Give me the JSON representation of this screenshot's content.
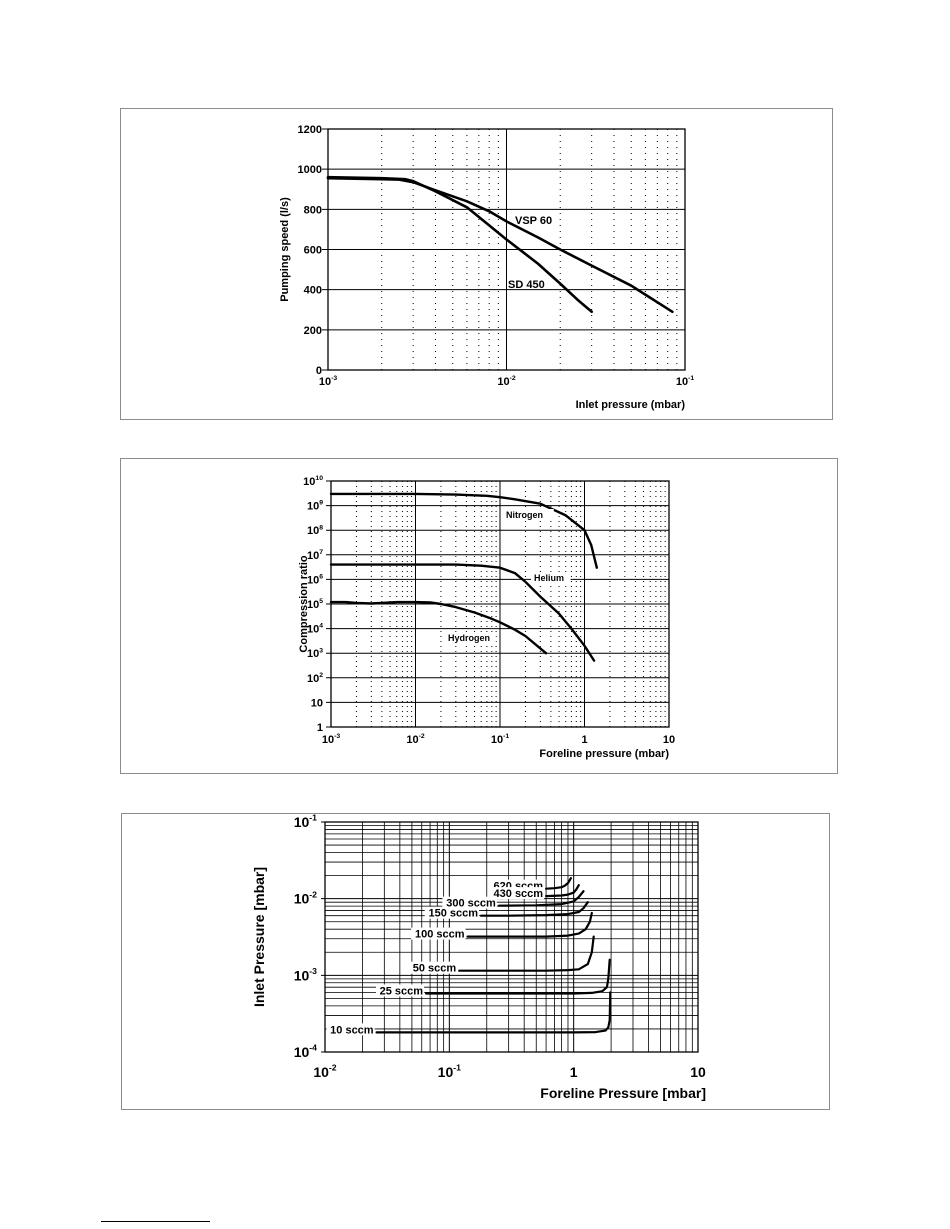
{
  "chart_data": [
    {
      "type": "line",
      "xscale": "log",
      "xlim": [
        0.001,
        0.1
      ],
      "ylim": [
        0,
        1200
      ],
      "xlabel": "Inlet pressure (mbar)",
      "ylabel": "Pumping speed (l/s)",
      "title": "",
      "grid": true,
      "x_tick_labels": [
        {
          "x": 0.001,
          "base": "10",
          "exp": "-3"
        },
        {
          "x": 0.01,
          "base": "10",
          "exp": "-2"
        },
        {
          "x": 0.1,
          "base": "10",
          "exp": "-1"
        }
      ],
      "y_ticks": [
        0,
        200,
        400,
        600,
        800,
        1000,
        1200
      ],
      "y_tick_labels": [
        "0",
        "200",
        "400",
        "600",
        "800",
        "1000",
        "1200"
      ],
      "series": [
        {
          "name": "VSP 60",
          "x": [
            0.001,
            0.002,
            0.0025,
            0.003,
            0.004,
            0.006,
            0.008,
            0.01,
            0.015,
            0.02,
            0.03,
            0.05,
            0.085
          ],
          "y": [
            955,
            950,
            948,
            935,
            895,
            840,
            790,
            740,
            660,
            600,
            520,
            420,
            290
          ]
        },
        {
          "name": "SD 450",
          "x": [
            0.001,
            0.002,
            0.0027,
            0.003,
            0.004,
            0.006,
            0.008,
            0.01,
            0.015,
            0.02,
            0.025,
            0.03
          ],
          "y": [
            960,
            955,
            950,
            940,
            890,
            810,
            720,
            650,
            530,
            430,
            350,
            290
          ]
        }
      ]
    },
    {
      "type": "line",
      "xscale": "log",
      "yscale": "log",
      "xlim": [
        0.001,
        10
      ],
      "ylim": [
        1,
        10000000000
      ],
      "xlabel": "Foreline pressure (mbar)",
      "ylabel": "Compression ratio",
      "title": "",
      "grid": true,
      "x_tick_labels": [
        {
          "x": 0.001,
          "base": "10",
          "exp": "-3"
        },
        {
          "x": 0.01,
          "base": "10",
          "exp": "-2"
        },
        {
          "x": 0.1,
          "base": "10",
          "exp": "-1"
        },
        {
          "x": 1,
          "base": "1",
          "exp": ""
        },
        {
          "x": 10,
          "base": "10",
          "exp": ""
        }
      ],
      "y_tick_labels": [
        {
          "y": 1,
          "base": "1",
          "exp": ""
        },
        {
          "y": 10,
          "base": "10",
          "exp": ""
        },
        {
          "y": 100,
          "base": "10",
          "exp": "2"
        },
        {
          "y": 1000,
          "base": "10",
          "exp": "3"
        },
        {
          "y": 10000,
          "base": "10",
          "exp": "4"
        },
        {
          "y": 100000,
          "base": "10",
          "exp": "5"
        },
        {
          "y": 1000000,
          "base": "10",
          "exp": "6"
        },
        {
          "y": 10000000,
          "base": "10",
          "exp": "7"
        },
        {
          "y": 100000000,
          "base": "10",
          "exp": "8"
        },
        {
          "y": 1000000000,
          "base": "10",
          "exp": "9"
        },
        {
          "y": 10000000000,
          "base": "10",
          "exp": "10"
        }
      ],
      "series": [
        {
          "name": "Nitrogen",
          "x": [
            0.001,
            0.01,
            0.03,
            0.07,
            0.1,
            0.15,
            0.3,
            0.6,
            1.0,
            1.2,
            1.4
          ],
          "y": [
            3000000000,
            3000000000,
            2800000000,
            2500000000,
            2200000000,
            1800000000,
            1200000000,
            400000000,
            100000000,
            25000000,
            3000000
          ]
        },
        {
          "name": "Helium",
          "x": [
            0.001,
            0.01,
            0.03,
            0.06,
            0.1,
            0.15,
            0.2,
            0.3,
            0.5,
            0.7,
            1.0,
            1.3
          ],
          "y": [
            4000000,
            4000000,
            4000000,
            3600000,
            3000000,
            1800000,
            800000,
            200000,
            40000,
            10000,
            2000,
            500
          ]
        },
        {
          "name": "Hydrogen",
          "x": [
            0.001,
            0.0015,
            0.002,
            0.003,
            0.004,
            0.006,
            0.01,
            0.015,
            0.02,
            0.03,
            0.05,
            0.08,
            0.1,
            0.15,
            0.2,
            0.35
          ],
          "y": [
            120000,
            120000,
            110000,
            105000,
            110000,
            120000,
            120000,
            115000,
            100000,
            75000,
            45000,
            25000,
            18000,
            9000,
            5000,
            1000
          ]
        }
      ]
    },
    {
      "type": "line",
      "xscale": "log",
      "yscale": "log",
      "xlim": [
        0.01,
        10
      ],
      "ylim": [
        0.0001,
        0.1
      ],
      "xlabel": "Foreline Pressure  [mbar]",
      "ylabel": "Inlet Pressure  [mbar]",
      "title": "",
      "grid": true,
      "x_tick_labels": [
        {
          "x": 0.01,
          "base": "10",
          "exp": "-2"
        },
        {
          "x": 0.1,
          "base": "10",
          "exp": "-1"
        },
        {
          "x": 1,
          "base": "1",
          "exp": ""
        },
        {
          "x": 10,
          "base": "10",
          "exp": ""
        }
      ],
      "y_tick_labels": [
        {
          "y": 0.0001,
          "base": "10",
          "exp": "-4"
        },
        {
          "y": 0.001,
          "base": "10",
          "exp": "-3"
        },
        {
          "y": 0.01,
          "base": "10",
          "exp": "-2"
        },
        {
          "y": 0.1,
          "base": "10",
          "exp": "-1"
        }
      ],
      "series": [
        {
          "name": "620 sccm",
          "x": [
            0.6,
            0.7,
            0.8,
            0.85,
            0.9,
            0.95
          ],
          "y": [
            0.0135,
            0.0137,
            0.0141,
            0.0148,
            0.016,
            0.0185
          ]
        },
        {
          "name": "430 sccm",
          "x": [
            0.6,
            0.8,
            0.9,
            1.0,
            1.05,
            1.1
          ],
          "y": [
            0.0108,
            0.011,
            0.0113,
            0.012,
            0.0132,
            0.015
          ]
        },
        {
          "name": "300 sccm",
          "x": [
            0.25,
            0.5,
            0.8,
            1.0,
            1.1,
            1.2
          ],
          "y": [
            0.0081,
            0.0082,
            0.0085,
            0.0092,
            0.0105,
            0.0125
          ]
        },
        {
          "name": "150 sccm",
          "x": [
            0.18,
            0.3,
            0.6,
            0.9,
            1.1,
            1.2,
            1.3
          ],
          "y": [
            0.006,
            0.006,
            0.0061,
            0.0063,
            0.0067,
            0.0075,
            0.009
          ]
        },
        {
          "name": "100 sccm",
          "x": [
            0.14,
            0.3,
            0.6,
            0.9,
            1.1,
            1.25,
            1.35,
            1.4
          ],
          "y": [
            0.0032,
            0.0032,
            0.0032,
            0.0033,
            0.0035,
            0.004,
            0.005,
            0.0065
          ]
        },
        {
          "name": "50 sccm",
          "x": [
            0.12,
            0.3,
            0.6,
            0.9,
            1.1,
            1.3,
            1.4,
            1.45
          ],
          "y": [
            0.00115,
            0.00115,
            0.00115,
            0.00117,
            0.0012,
            0.0014,
            0.002,
            0.0032
          ]
        },
        {
          "name": "25 sccm",
          "x": [
            0.065,
            0.2,
            0.5,
            1.0,
            1.4,
            1.7,
            1.85,
            1.9,
            1.95
          ],
          "y": [
            0.00058,
            0.00058,
            0.00058,
            0.00058,
            0.00059,
            0.00062,
            0.0007,
            0.0009,
            0.0016
          ]
        },
        {
          "name": "10 sccm",
          "x": [
            0.026,
            0.1,
            0.5,
            1.0,
            1.5,
            1.8,
            1.9,
            1.95,
            1.97
          ],
          "y": [
            0.00018,
            0.00018,
            0.00018,
            0.00018,
            0.000182,
            0.00019,
            0.00021,
            0.00026,
            0.0006
          ]
        }
      ]
    }
  ]
}
